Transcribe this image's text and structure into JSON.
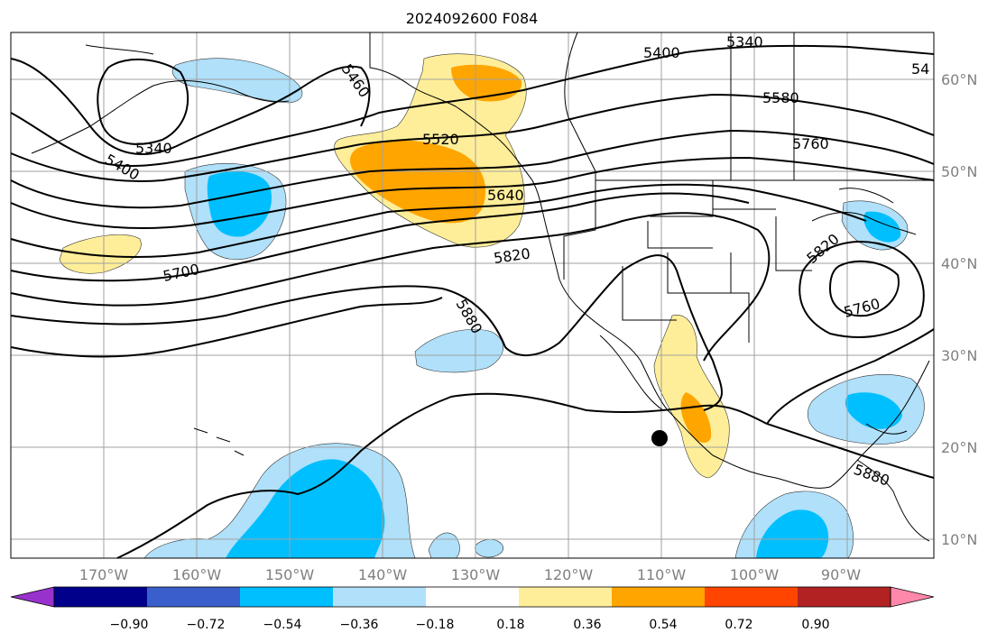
{
  "title": "2024092600 F084",
  "axes": {
    "lat_labels": [
      "60°N",
      "50°N",
      "40°N",
      "30°N",
      "20°N",
      "10°N"
    ],
    "lon_labels": [
      "170°W",
      "160°W",
      "150°W",
      "140°W",
      "130°W",
      "120°W",
      "110°W",
      "100°W",
      "90°W"
    ]
  },
  "contour_labels": [
    "5400",
    "5340",
    "5460",
    "5400",
    "5340",
    "5580",
    "5520",
    "5760",
    "5640",
    "5700",
    "5820",
    "5820",
    "5880",
    "5760",
    "5880",
    "54"
  ],
  "colorbar": {
    "tick_labels": [
      "−0.90",
      "−0.72",
      "−0.54",
      "−0.36",
      "−0.18",
      "0.18",
      "0.36",
      "0.54",
      "0.72",
      "0.90"
    ],
    "colors": [
      "#9932cc",
      "#00008b",
      "#3a5fcd",
      "#00bfff",
      "#b0e0fa",
      "#ffffff",
      "#ffee99",
      "#ffa500",
      "#ff4500",
      "#b22222",
      "#ff88aa"
    ]
  },
  "colors": {
    "light_blue": "#b0e0fa",
    "blue": "#00bfff",
    "yellow": "#ffee99",
    "orange": "#ffa500",
    "contour": "#000000",
    "grid": "#a0a0a0"
  },
  "marker": "storm-position-dot"
}
